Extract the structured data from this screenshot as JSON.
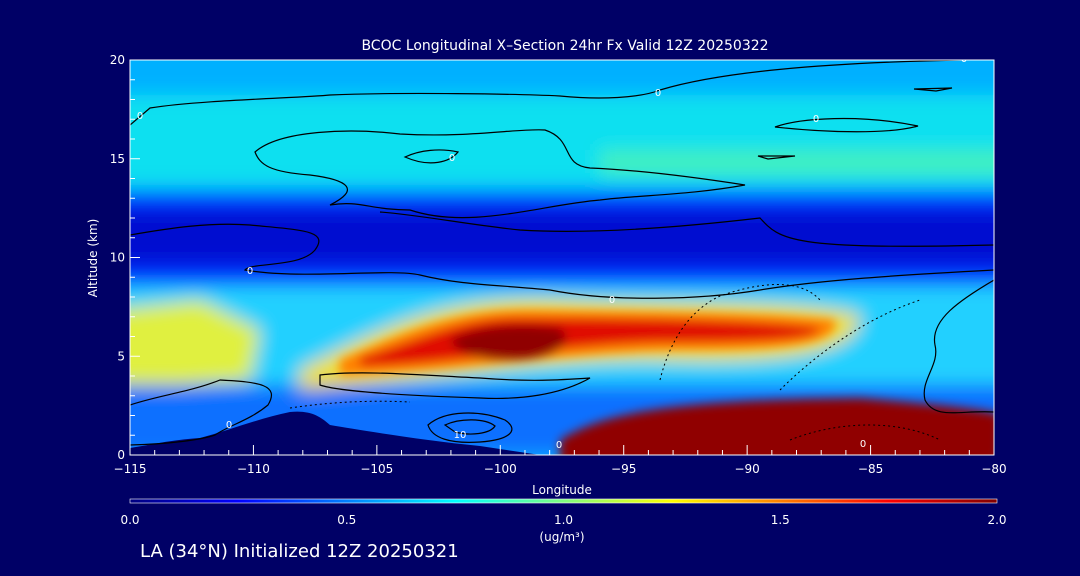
{
  "chart_data": {
    "type": "heatmap",
    "title": "BCOC Longitudinal X–Section 24hr  Fx Valid 12Z 20250322",
    "xlabel": "Longitude",
    "ylabel": "Altitude (km)",
    "xlim": [
      -115,
      -80
    ],
    "ylim": [
      0,
      20
    ],
    "xticks": [
      "−115",
      "−110",
      "−105",
      "−100",
      "−95",
      "−90",
      "−85",
      "−80"
    ],
    "xtick_values": [
      -115,
      -110,
      -105,
      -100,
      -95,
      -90,
      -85,
      -80
    ],
    "yticks": [
      "0",
      "5",
      "10",
      "15",
      "20"
    ],
    "ytick_values": [
      0,
      5,
      10,
      15,
      20
    ],
    "colorbar": {
      "min": 0.0,
      "max": 2.0,
      "ticks": [
        "0.0",
        "0.5",
        "1.0",
        "1.5",
        "2.0"
      ],
      "tick_values": [
        0.0,
        0.5,
        1.0,
        1.5,
        2.0
      ],
      "units": "(ug/m³)"
    },
    "colormap": [
      "#00007f",
      "#0000ff",
      "#0080ff",
      "#00ffff",
      "#80ff80",
      "#ffff00",
      "#ff8000",
      "#ff0000",
      "#800000"
    ],
    "contour_labels": [
      "0",
      "0",
      "0",
      "0",
      "0",
      "0",
      "10",
      "0",
      "0",
      "0",
      "0"
    ],
    "terrain_color": "#000066"
  },
  "footer": {
    "text": "LA (34°N) Initialized 12Z 20250321"
  }
}
